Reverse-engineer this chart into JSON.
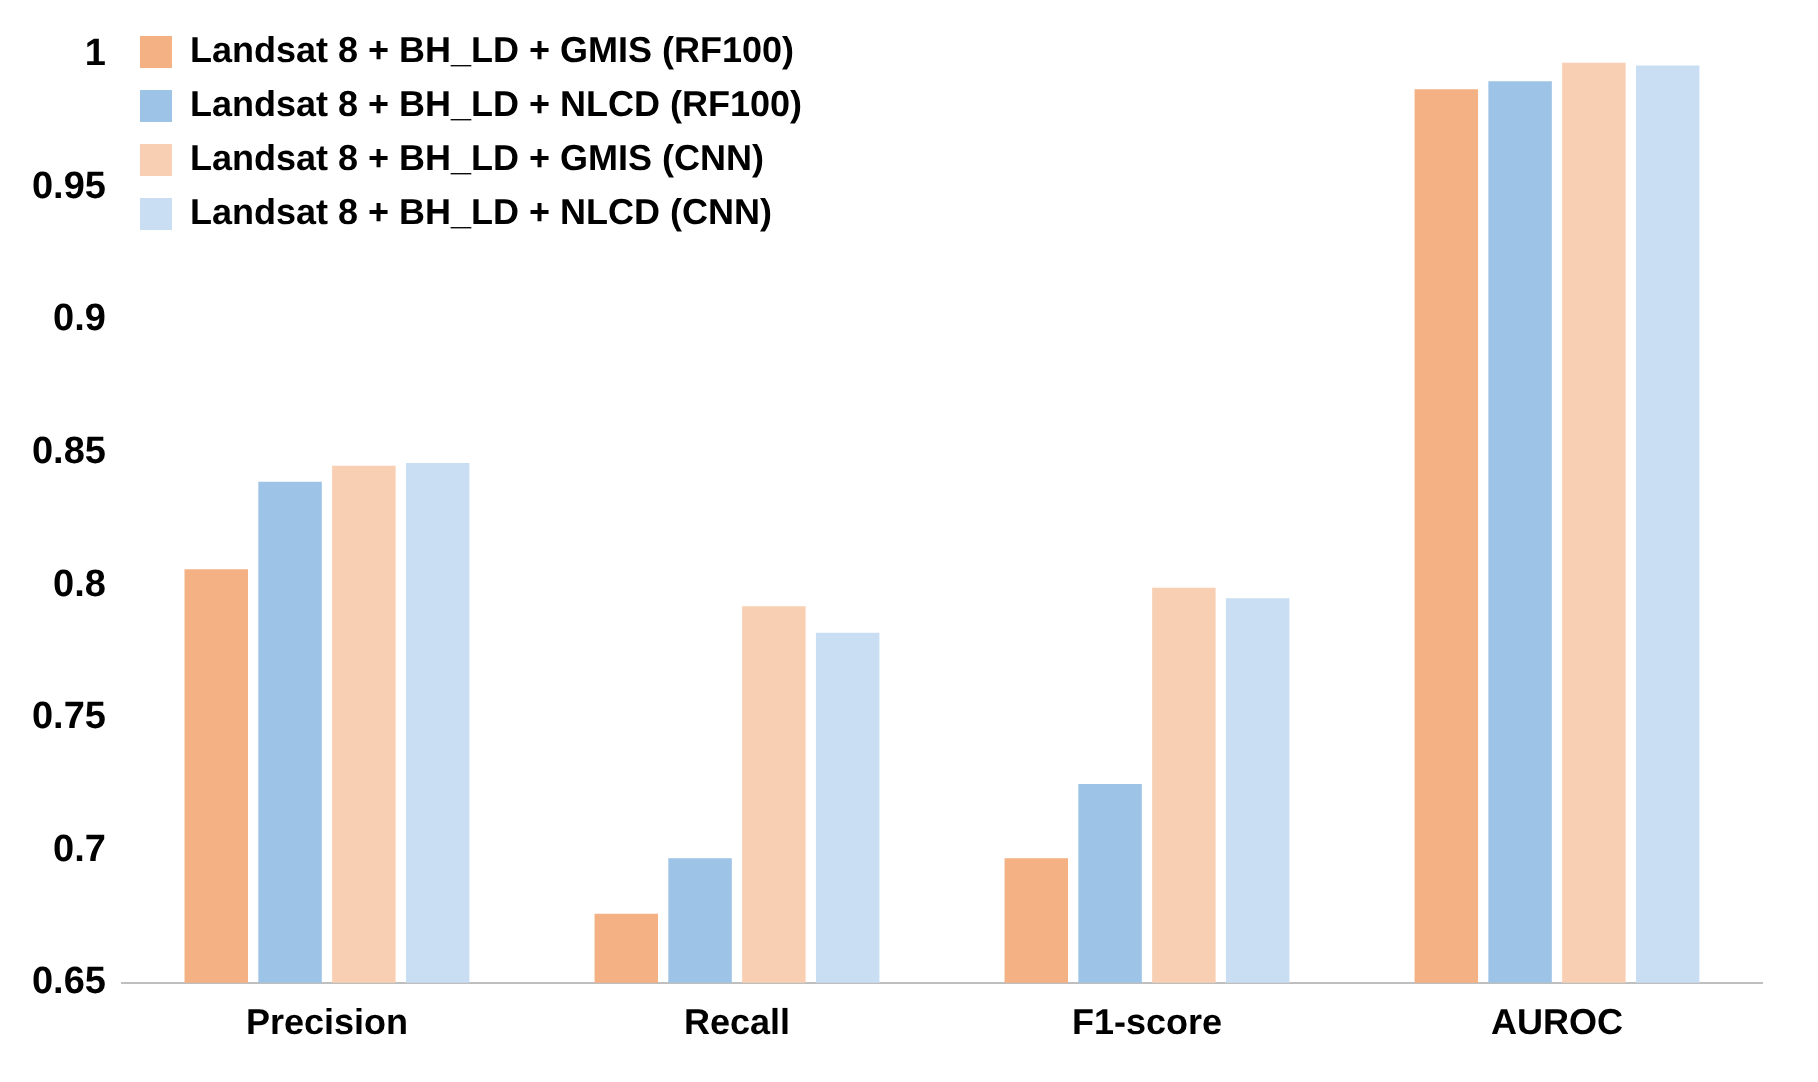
{
  "chart_data": {
    "type": "bar",
    "categories": [
      "Precision",
      "Recall",
      "F1-score",
      "AUROC"
    ],
    "series": [
      {
        "name": "Landsat 8 + BH_LD + GMIS (RF100)",
        "color": "#f4b183",
        "values": [
          0.806,
          0.676,
          0.697,
          0.987
        ]
      },
      {
        "name": "Landsat 8 + BH_LD + NLCD (RF100)",
        "color": "#9dc3e6",
        "values": [
          0.839,
          0.697,
          0.725,
          0.99
        ]
      },
      {
        "name": "Landsat 8 + BH_LD + GMIS (CNN)",
        "color": "#f9cfb3",
        "values": [
          0.845,
          0.792,
          0.799,
          0.997
        ]
      },
      {
        "name": "Landsat 8 + BH_LD + NLCD (CNN)",
        "color": "#c9def2",
        "values": [
          0.846,
          0.782,
          0.795,
          0.996
        ]
      }
    ],
    "ylim": [
      0.65,
      1
    ],
    "yticks": [
      0.65,
      0.7,
      0.75,
      0.8,
      0.85,
      0.9,
      0.95,
      1
    ],
    "grid": false,
    "legend": "top"
  }
}
